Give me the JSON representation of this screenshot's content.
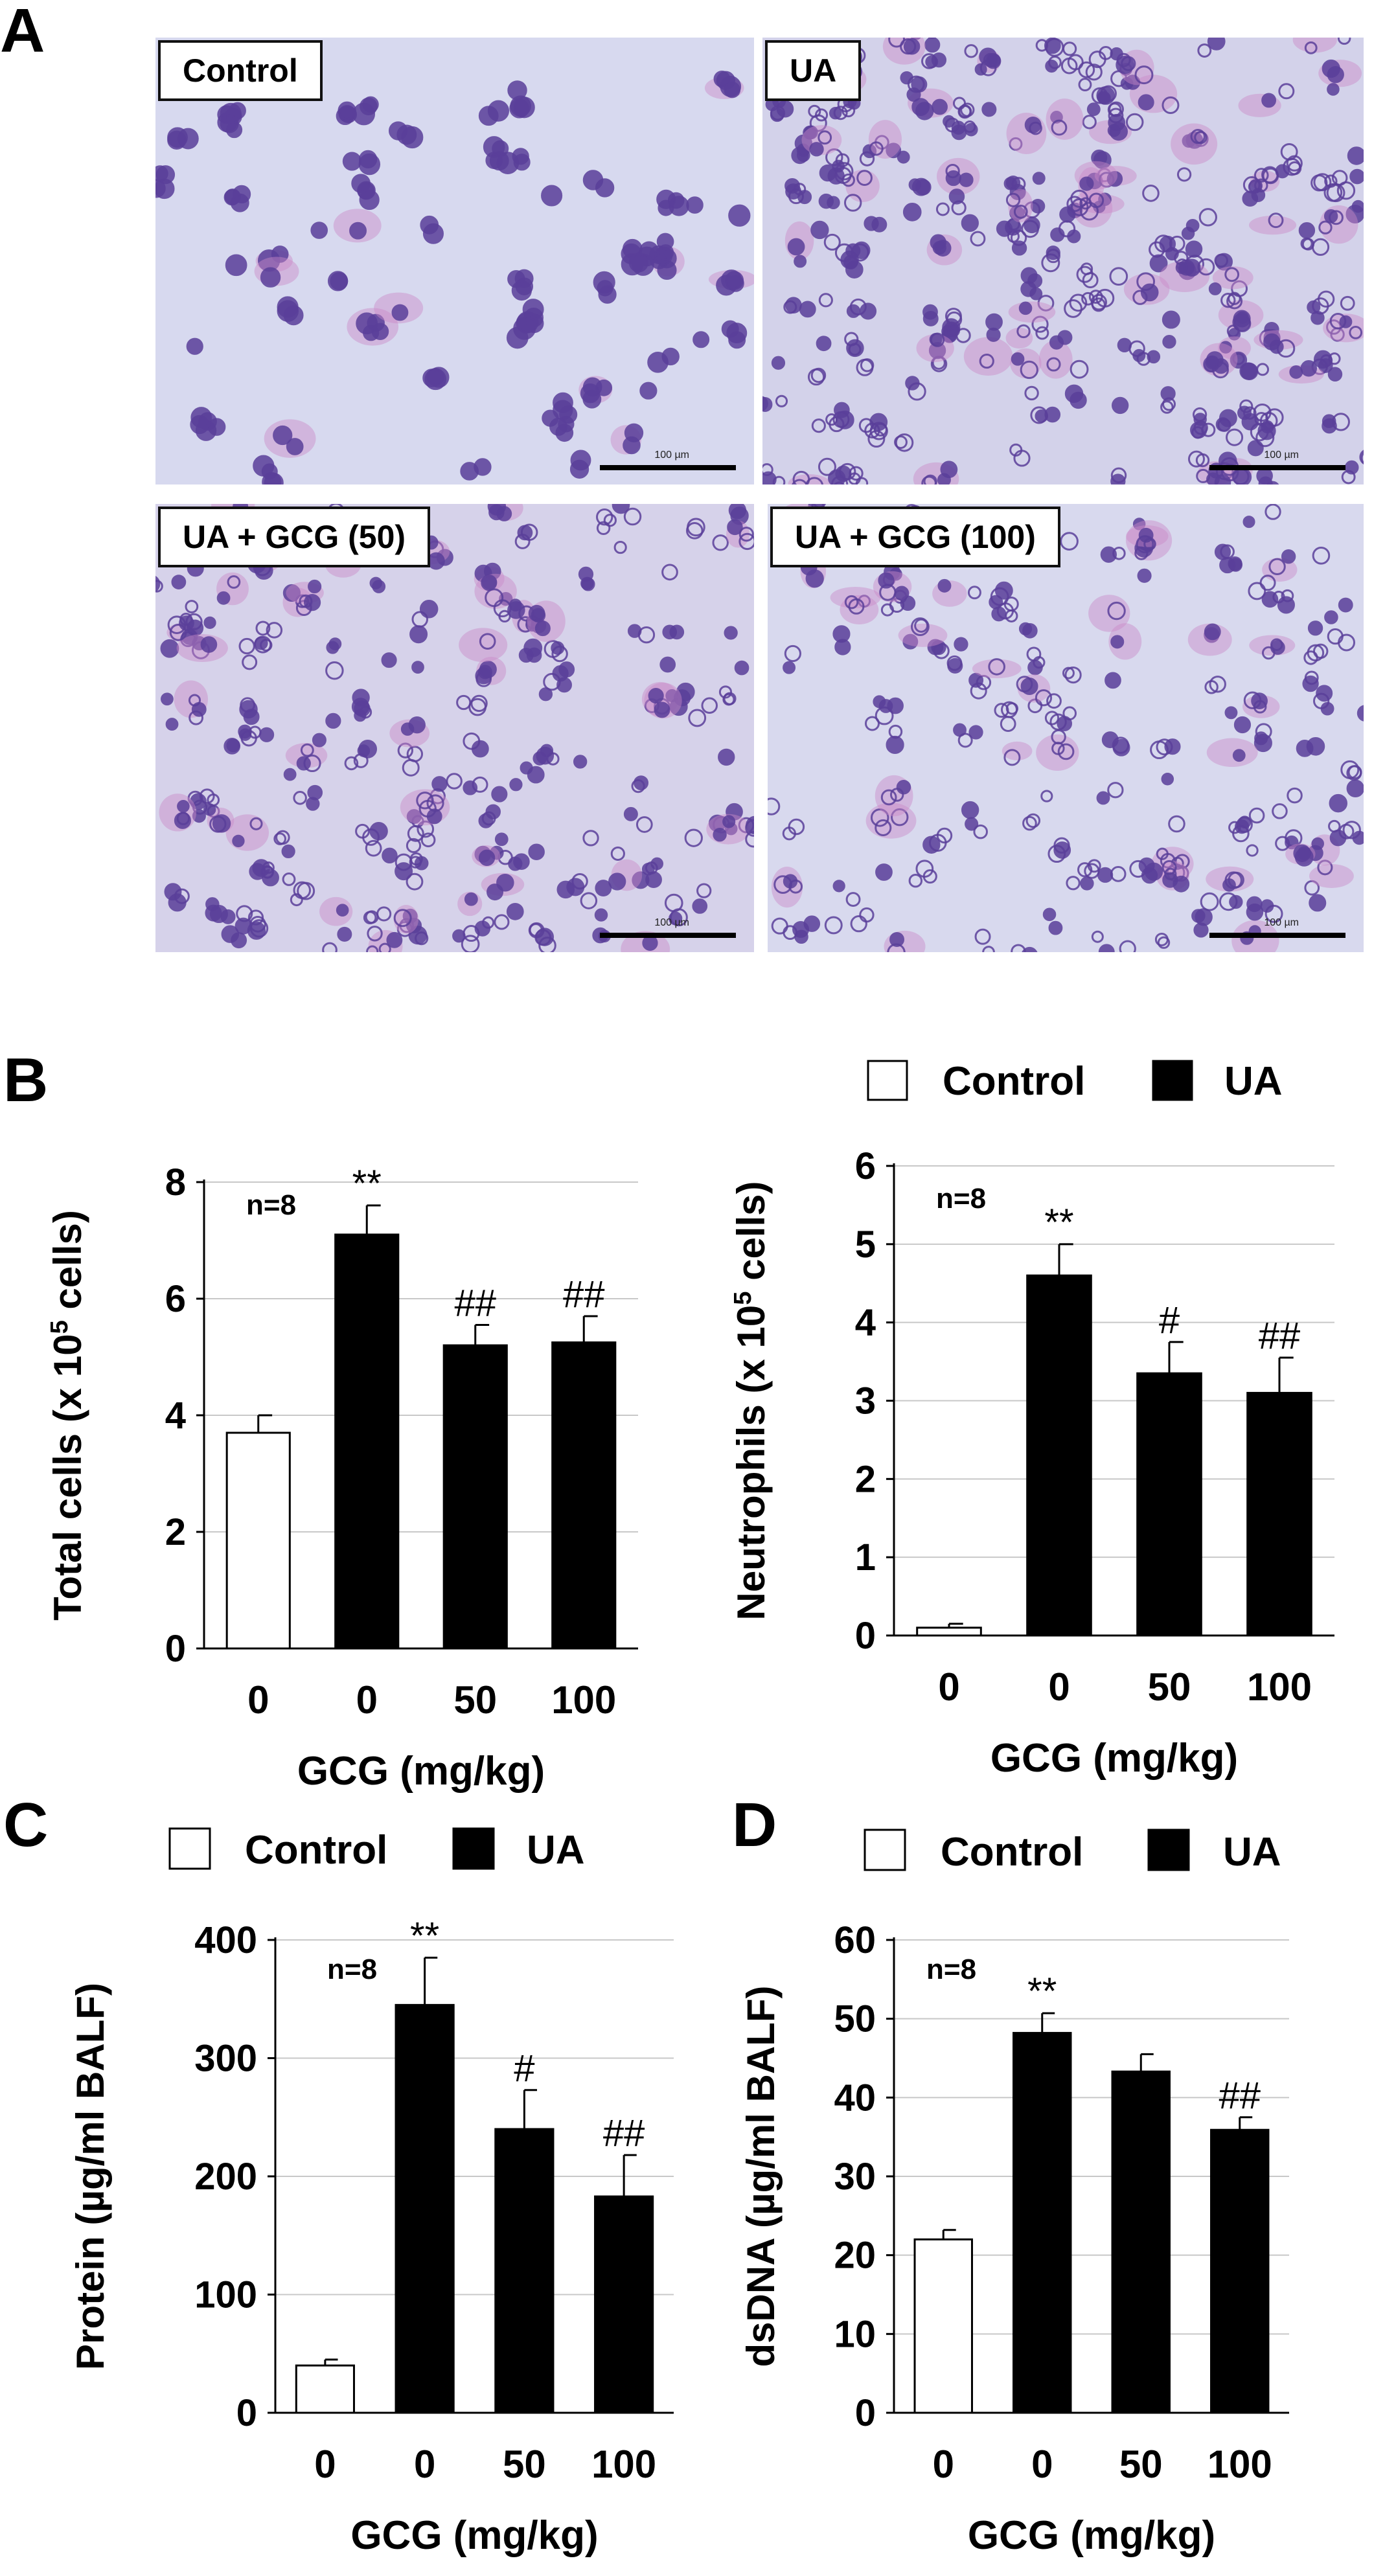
{
  "panel_letters": {
    "a": "A",
    "b": "B",
    "c": "C",
    "d": "D"
  },
  "micrographs": [
    {
      "label": "Control",
      "scale": "100 µm",
      "tint": "#d7d9ef"
    },
    {
      "label": "UA",
      "scale": "100 µm",
      "tint": "#d3d2ea"
    },
    {
      "label": "UA + GCG (50)",
      "scale": "100 µm",
      "tint": "#d6d2ea"
    },
    {
      "label": "UA + GCG (100)",
      "scale": "100 µm",
      "tint": "#d8d9ee"
    }
  ],
  "legend": {
    "control": "Control",
    "ua": "UA"
  },
  "colors": {
    "control_fill": "#ffffff",
    "ua_fill": "#000000",
    "grid": "#c8c8c8",
    "cell_purple": "#5a3f9a",
    "cell_pink": "#c98ac8"
  },
  "chart_data": [
    {
      "id": "total-cells",
      "type": "bar",
      "categories": [
        "0",
        "0",
        "50",
        "100"
      ],
      "groups": [
        "Control",
        "UA",
        "UA",
        "UA"
      ],
      "values": [
        3.7,
        7.1,
        5.2,
        5.25
      ],
      "errors": [
        0.3,
        0.5,
        0.35,
        0.45
      ],
      "annotations": [
        "",
        "**",
        "##",
        "##"
      ],
      "n_label": "n=8",
      "ylabel_parts": [
        "Total cells (x 10",
        "5",
        " cells)"
      ],
      "xlabel": "GCG (mg/kg)",
      "ylim": [
        0,
        8
      ],
      "yticks": [
        "0",
        "2",
        "4",
        "6",
        "8"
      ],
      "grid": true
    },
    {
      "id": "neutrophils",
      "type": "bar",
      "categories": [
        "0",
        "0",
        "50",
        "100"
      ],
      "groups": [
        "Control",
        "UA",
        "UA",
        "UA"
      ],
      "values": [
        0.1,
        4.6,
        3.35,
        3.1
      ],
      "errors": [
        0.05,
        0.4,
        0.4,
        0.45
      ],
      "annotations": [
        "",
        "**",
        "#",
        "##"
      ],
      "n_label": "n=8",
      "ylabel_parts": [
        "Neutrophils (x 10",
        "5",
        " cells)"
      ],
      "xlabel": "GCG (mg/kg)",
      "ylim": [
        0,
        6
      ],
      "yticks": [
        "0",
        "1",
        "2",
        "3",
        "4",
        "5",
        "6"
      ],
      "grid": true
    },
    {
      "id": "protein",
      "type": "bar",
      "categories": [
        "0",
        "0",
        "50",
        "100"
      ],
      "groups": [
        "Control",
        "UA",
        "UA",
        "UA"
      ],
      "values": [
        40,
        345,
        240,
        183
      ],
      "errors": [
        5,
        40,
        33,
        35
      ],
      "annotations": [
        "",
        "**",
        "#",
        "##"
      ],
      "n_label": "n=8",
      "ylabel_parts": [
        "Protein (µg/ml BALF)"
      ],
      "xlabel": "GCG (mg/kg)",
      "ylim": [
        0,
        400
      ],
      "yticks": [
        "0",
        "100",
        "200",
        "300",
        "400"
      ],
      "grid": true
    },
    {
      "id": "dsdna",
      "type": "bar",
      "categories": [
        "0",
        "0",
        "50",
        "100"
      ],
      "groups": [
        "Control",
        "UA",
        "UA",
        "UA"
      ],
      "values": [
        22,
        48.2,
        43.3,
        35.9
      ],
      "errors": [
        1.2,
        2.5,
        2.2,
        1.6
      ],
      "annotations": [
        "",
        "**",
        "",
        "##"
      ],
      "n_label": "n=8",
      "ylabel_parts": [
        "dsDNA (µg/ml BALF)"
      ],
      "xlabel": "GCG (mg/kg)",
      "ylim": [
        0,
        60
      ],
      "yticks": [
        "0",
        "10",
        "20",
        "30",
        "40",
        "50",
        "60"
      ],
      "grid": true
    }
  ]
}
